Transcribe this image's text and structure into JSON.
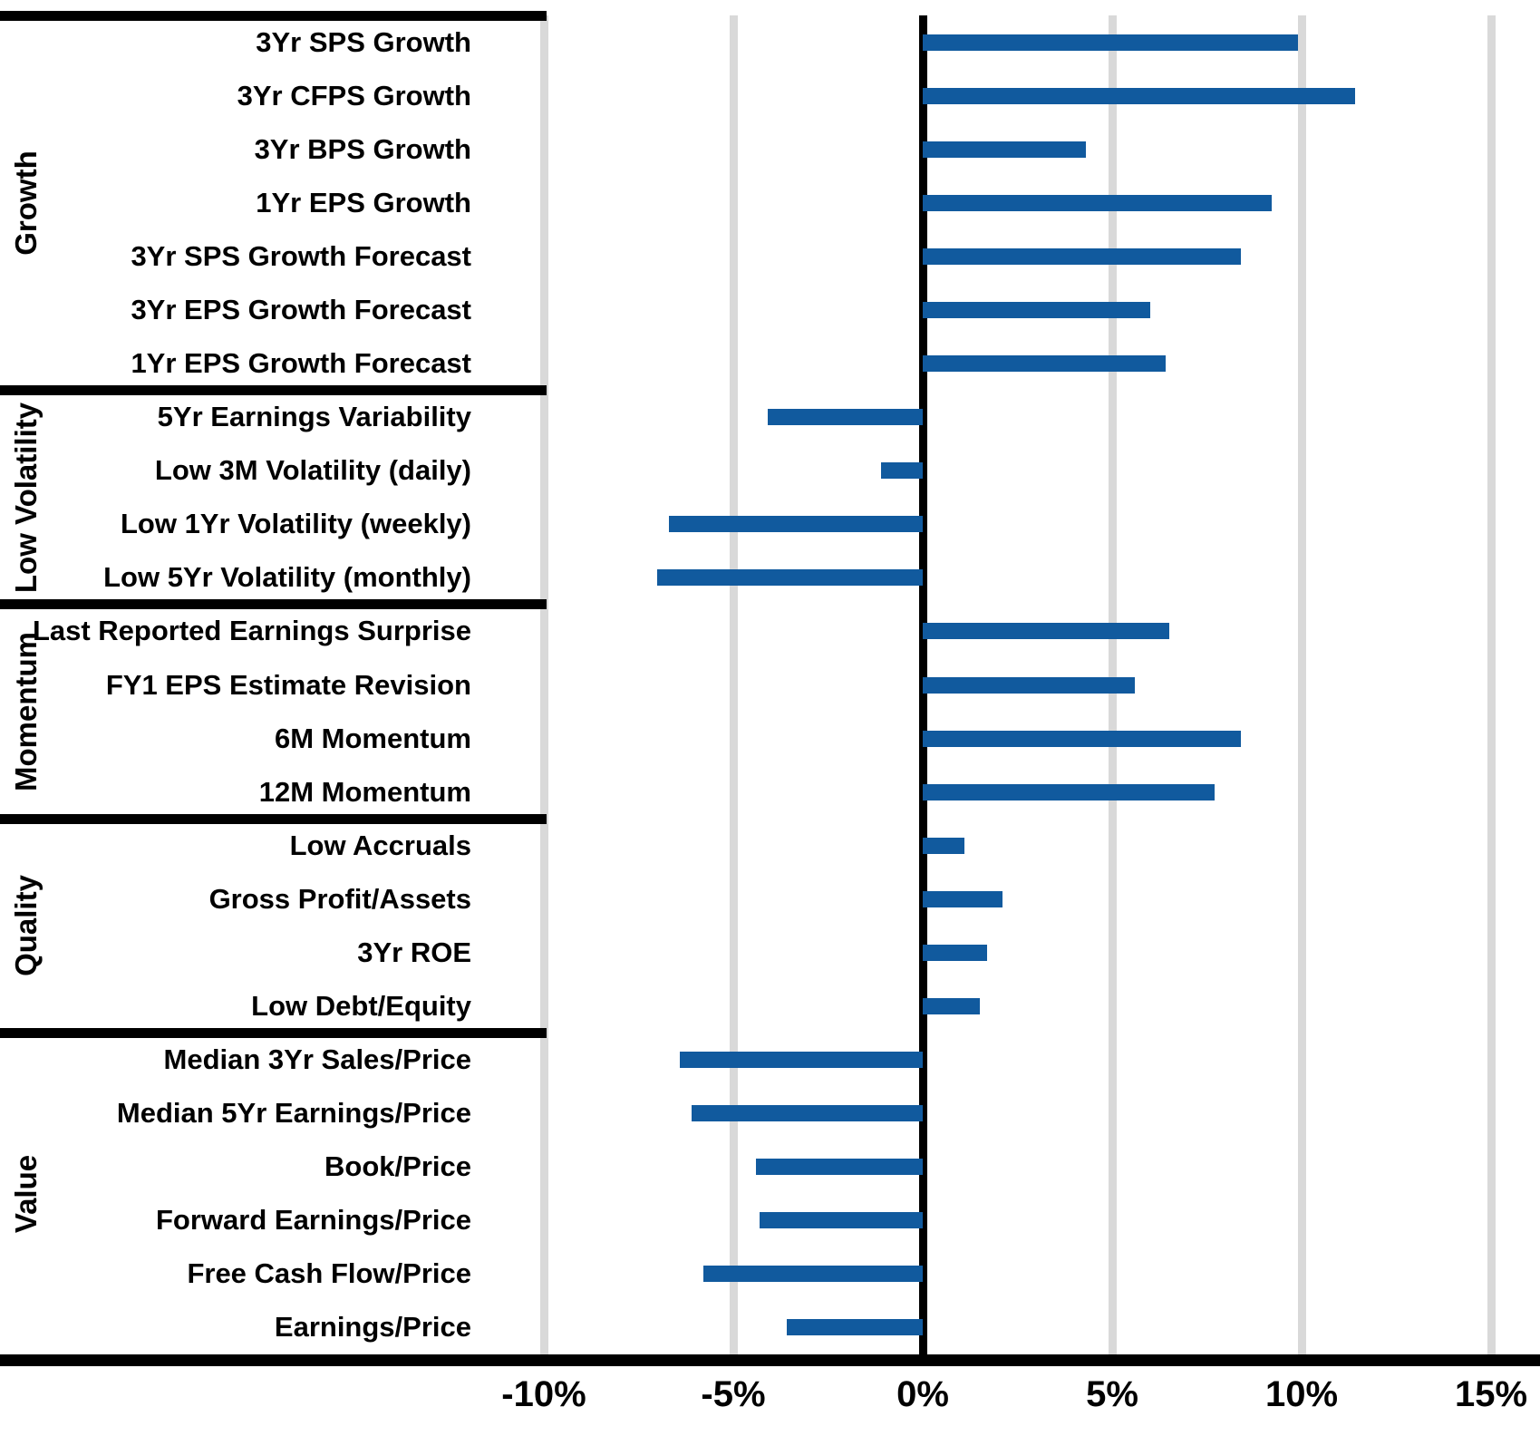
{
  "chart_data": {
    "type": "bar",
    "orientation": "horizontal",
    "xlim": [
      -10,
      15
    ],
    "grid": true,
    "legend": false,
    "bar_color": "#115A9E",
    "gridline_color": "#D9D9D9",
    "axis_color": "#000000",
    "x_ticks": [
      {
        "label": "-10%",
        "value": -10
      },
      {
        "label": "-5%",
        "value": -5
      },
      {
        "label": "0%",
        "value": 0
      },
      {
        "label": "5%",
        "value": 5
      },
      {
        "label": "10%",
        "value": 10
      },
      {
        "label": "15%",
        "value": 15
      }
    ],
    "groups": [
      {
        "name": "Growth",
        "factors": [
          {
            "label": "3Yr SPS Growth",
            "value": 9.9
          },
          {
            "label": "3Yr CFPS Growth",
            "value": 11.4
          },
          {
            "label": "3Yr BPS Growth",
            "value": 4.3
          },
          {
            "label": "1Yr EPS Growth",
            "value": 9.2
          },
          {
            "label": "3Yr SPS Growth Forecast",
            "value": 8.4
          },
          {
            "label": "3Yr EPS Growth Forecast",
            "value": 6.0
          },
          {
            "label": "1Yr EPS Growth Forecast",
            "value": 6.4
          }
        ]
      },
      {
        "name": "Low Volatility",
        "factors": [
          {
            "label": "5Yr Earnings Variability",
            "value": -4.1
          },
          {
            "label": "Low 3M Volatility (daily)",
            "value": -1.1
          },
          {
            "label": "Low 1Yr Volatility (weekly)",
            "value": -6.7
          },
          {
            "label": "Low 5Yr Volatility (monthly)",
            "value": -7.0
          }
        ]
      },
      {
        "name": "Momentum",
        "factors": [
          {
            "label": "Last Reported Earnings Surprise",
            "value": 6.5
          },
          {
            "label": "FY1 EPS Estimate Revision",
            "value": 5.6
          },
          {
            "label": "6M Momentum",
            "value": 8.4
          },
          {
            "label": "12M Momentum",
            "value": 7.7
          }
        ]
      },
      {
        "name": "Quality",
        "factors": [
          {
            "label": "Low Accruals",
            "value": 1.1
          },
          {
            "label": "Gross Profit/Assets",
            "value": 2.1
          },
          {
            "label": "3Yr ROE",
            "value": 1.7
          },
          {
            "label": "Low Debt/Equity",
            "value": 1.5
          }
        ]
      },
      {
        "name": "Value",
        "factors": [
          {
            "label": "Median 3Yr Sales/Price",
            "value": -6.4
          },
          {
            "label": "Median 5Yr Earnings/Price",
            "value": -6.1
          },
          {
            "label": "Book/Price",
            "value": -4.4
          },
          {
            "label": "Forward Earnings/Price",
            "value": -4.3
          },
          {
            "label": "Free Cash Flow/Price",
            "value": -5.8
          },
          {
            "label": "Earnings/Price",
            "value": -3.6
          }
        ]
      }
    ]
  }
}
